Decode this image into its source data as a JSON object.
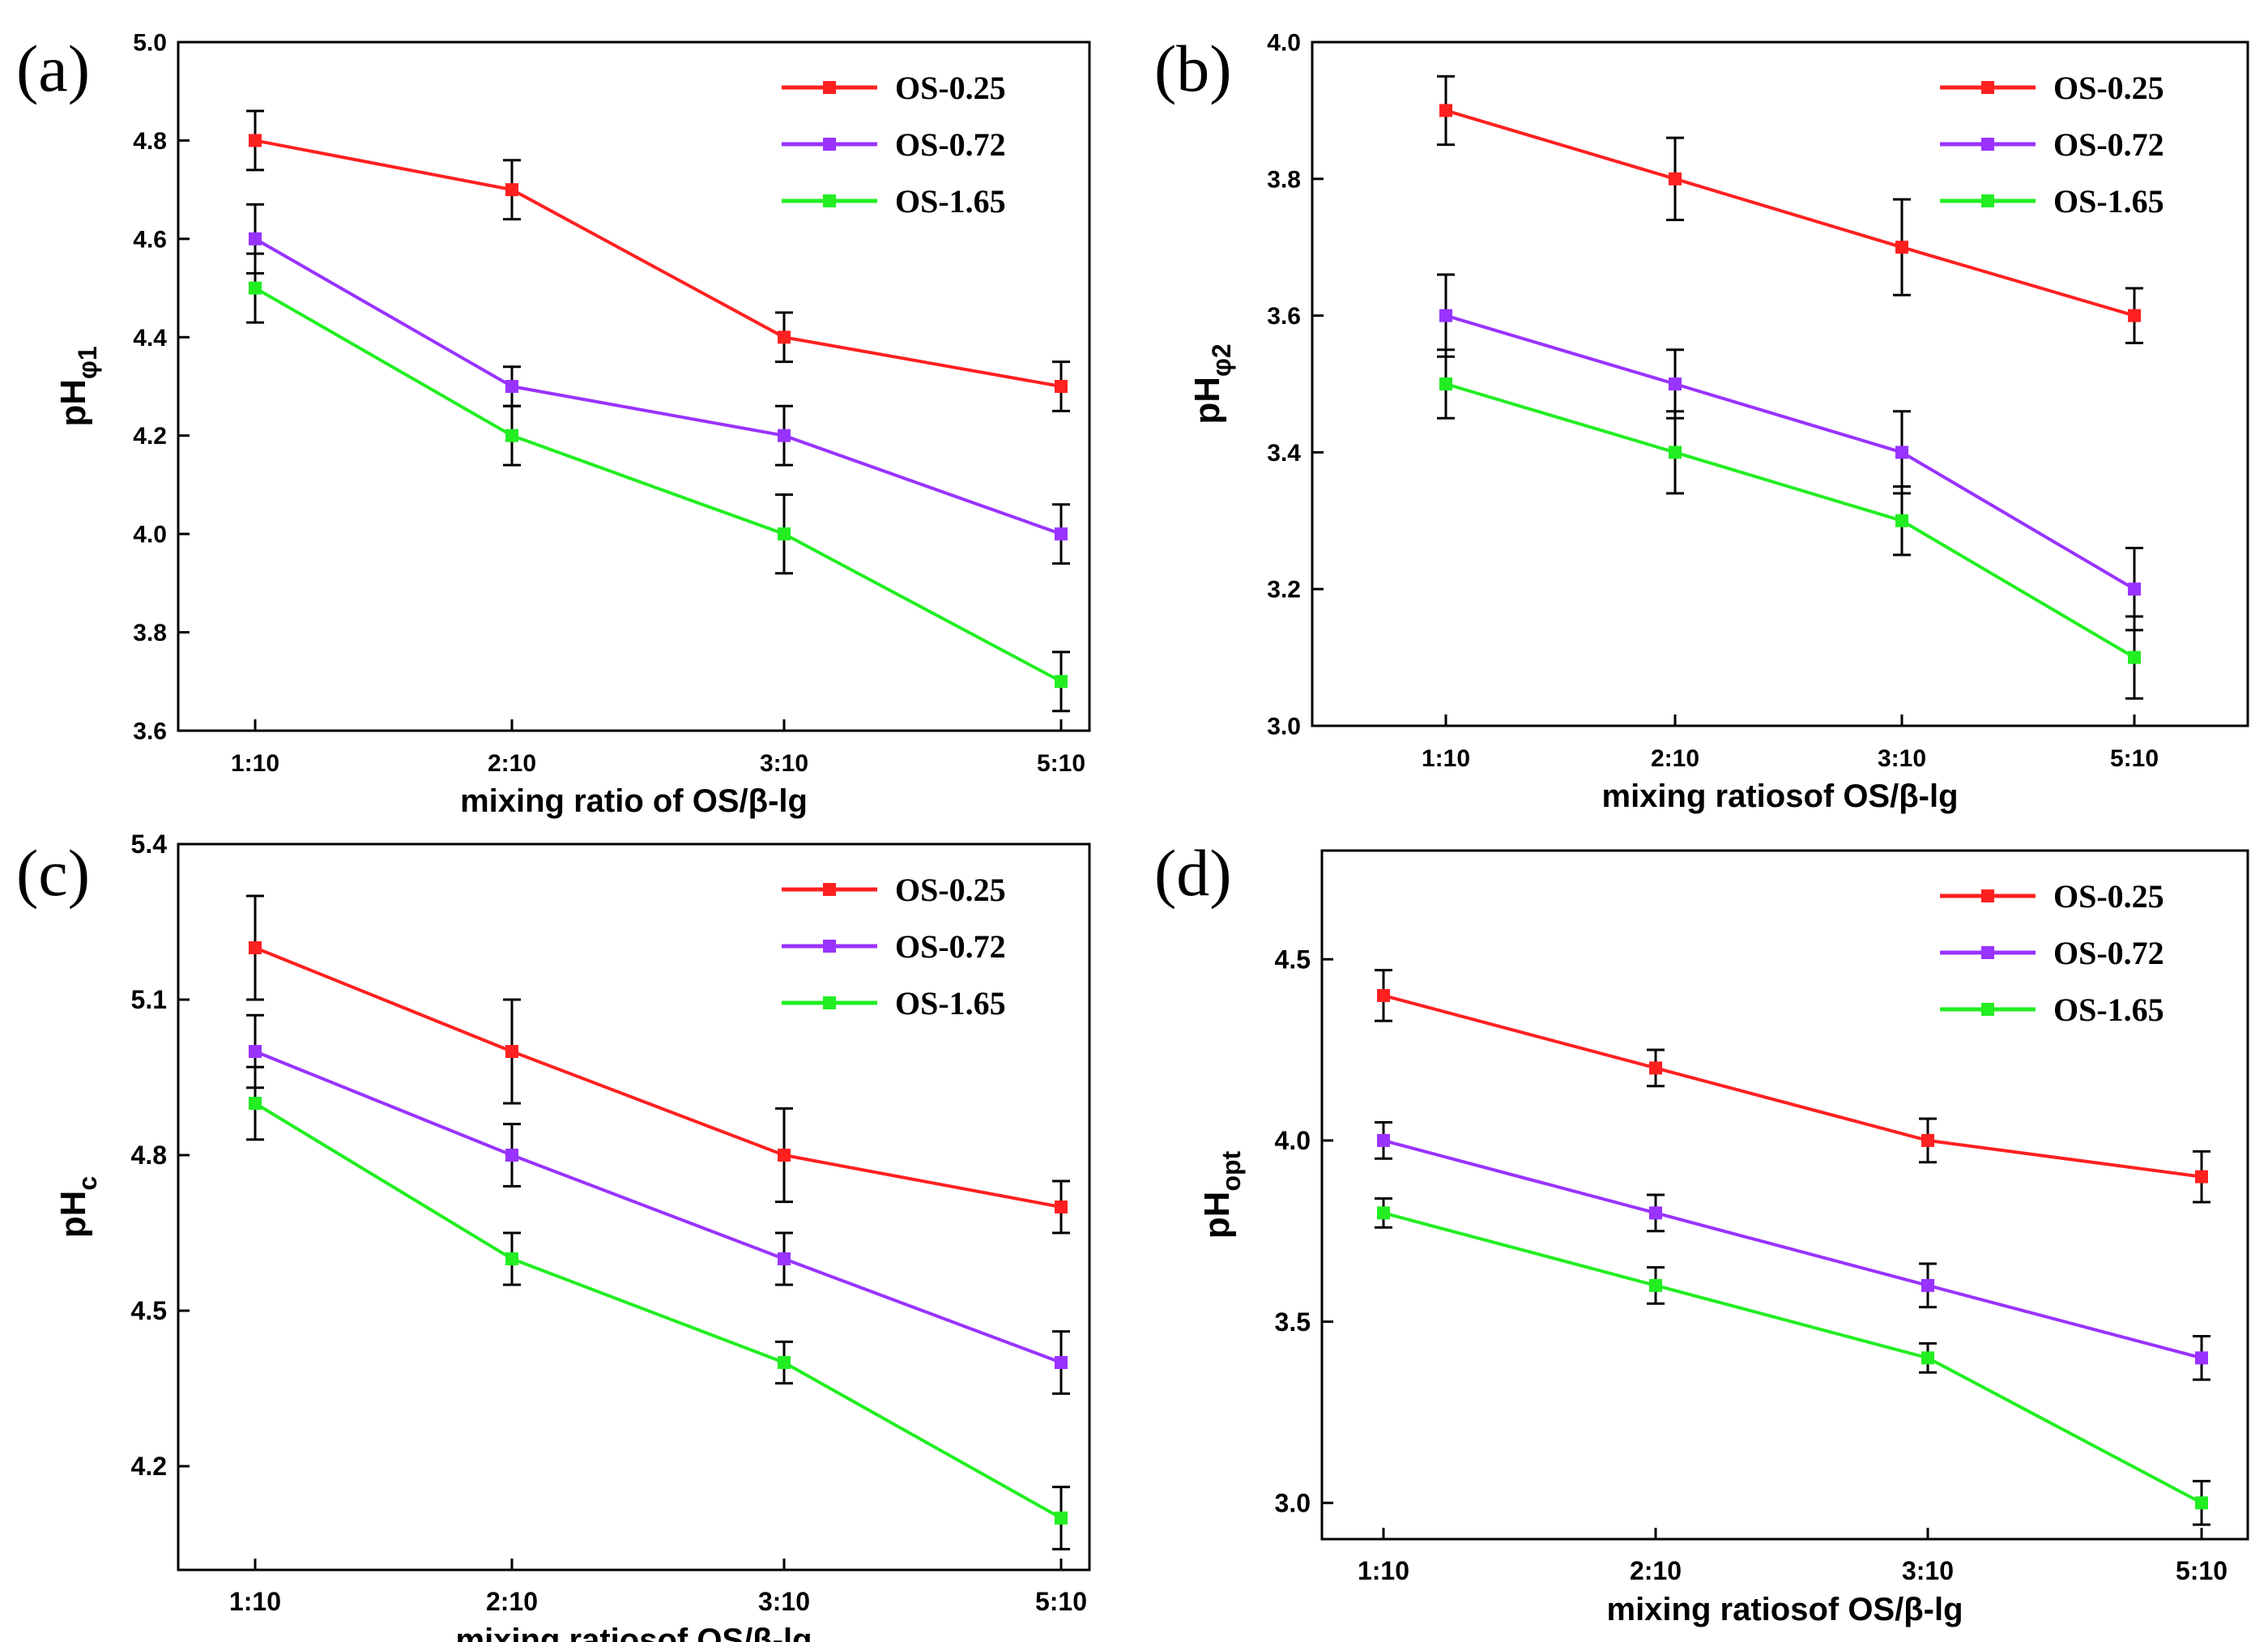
{
  "figure": {
    "colors": {
      "OS-0.25": "#ff2020",
      "OS-0.72": "#9933ff",
      "OS-1.65": "#22ee22",
      "error": "#000000"
    }
  },
  "chart_data": [
    {
      "type": "line",
      "panel": "(a)",
      "xlabel": "mixing ratio of OS/β-lg",
      "ylabel_main": "pH",
      "ylabel_sub": "φ1",
      "categories": [
        "1:10",
        "2:10",
        "3:10",
        "5:10"
      ],
      "ylim": [
        3.6,
        5.0
      ],
      "yticks": [
        3.6,
        3.8,
        4.0,
        4.2,
        4.4,
        4.6,
        4.8,
        5.0
      ],
      "ytick_labels": [
        "3.6",
        "3.8",
        "4.0",
        "4.2",
        "4.4",
        "4.6",
        "4.8",
        "5.0"
      ],
      "legend_position": "top-right",
      "series": [
        {
          "name": "OS-0.25",
          "values": [
            4.8,
            4.7,
            4.4,
            4.3
          ],
          "errors": [
            0.06,
            0.06,
            0.05,
            0.05
          ]
        },
        {
          "name": "OS-0.72",
          "values": [
            4.6,
            4.3,
            4.2,
            4.0
          ],
          "errors": [
            0.07,
            0.04,
            0.06,
            0.06
          ]
        },
        {
          "name": "OS-1.65",
          "values": [
            4.5,
            4.2,
            4.0,
            3.7
          ],
          "errors": [
            0.07,
            0.06,
            0.08,
            0.06
          ]
        }
      ]
    },
    {
      "type": "line",
      "panel": "(b)",
      "xlabel": "mixing ratiosof OS/β-lg",
      "ylabel_main": "pH",
      "ylabel_sub": "φ2",
      "categories": [
        "1:10",
        "2:10",
        "3:10",
        "5:10"
      ],
      "ylim": [
        3.0,
        4.0
      ],
      "yticks": [
        3.0,
        3.2,
        3.4,
        3.6,
        3.8,
        4.0
      ],
      "ytick_labels": [
        "3.0",
        "3.2",
        "3.4",
        "3.6",
        "3.8",
        "4.0"
      ],
      "legend_position": "top-right",
      "series": [
        {
          "name": "OS-0.25",
          "values": [
            3.9,
            3.8,
            3.7,
            3.6
          ],
          "errors": [
            0.05,
            0.06,
            0.07,
            0.04
          ]
        },
        {
          "name": "OS-0.72",
          "values": [
            3.6,
            3.5,
            3.4,
            3.2
          ],
          "errors": [
            0.06,
            0.05,
            0.06,
            0.06
          ]
        },
        {
          "name": "OS-1.65",
          "values": [
            3.5,
            3.4,
            3.3,
            3.1
          ],
          "errors": [
            0.05,
            0.06,
            0.05,
            0.06
          ]
        }
      ]
    },
    {
      "type": "line",
      "panel": "(c)",
      "xlabel": "mixing ratiosof OS/β-lg",
      "ylabel_main": "pH",
      "ylabel_sub": "c",
      "categories": [
        "1:10",
        "2:10",
        "3:10",
        "5:10"
      ],
      "ylim": [
        4.0,
        5.4
      ],
      "yticks": [
        4.2,
        4.5,
        4.8,
        5.1,
        5.4
      ],
      "ytick_labels": [
        "4.2",
        "4.5",
        "4.8",
        "5.1",
        "5.4"
      ],
      "legend_position": "top-right",
      "series": [
        {
          "name": "OS-0.25",
          "values": [
            5.2,
            5.0,
            4.8,
            4.7
          ],
          "errors": [
            0.1,
            0.1,
            0.09,
            0.05
          ]
        },
        {
          "name": "OS-0.72",
          "values": [
            5.0,
            4.8,
            4.6,
            4.4
          ],
          "errors": [
            0.07,
            0.06,
            0.05,
            0.06
          ]
        },
        {
          "name": "OS-1.65",
          "values": [
            4.9,
            4.6,
            4.4,
            4.1
          ],
          "errors": [
            0.07,
            0.05,
            0.04,
            0.06
          ]
        }
      ]
    },
    {
      "type": "line",
      "panel": "(d)",
      "xlabel": "mixing ratiosof OS/β-lg",
      "ylabel_main": "pH",
      "ylabel_sub": "opt",
      "categories": [
        "1:10",
        "2:10",
        "3:10",
        "5:10"
      ],
      "ylim": [
        2.9,
        4.8
      ],
      "yticks": [
        3.0,
        3.5,
        4.0,
        4.5
      ],
      "ytick_labels": [
        "3.0",
        "3.5",
        "4.0",
        "4.5"
      ],
      "legend_position": "top-right",
      "series": [
        {
          "name": "OS-0.25",
          "values": [
            4.4,
            4.2,
            4.0,
            3.9
          ],
          "errors": [
            0.07,
            0.05,
            0.06,
            0.07
          ]
        },
        {
          "name": "OS-0.72",
          "values": [
            4.0,
            3.8,
            3.6,
            3.4
          ],
          "errors": [
            0.05,
            0.05,
            0.06,
            0.06
          ]
        },
        {
          "name": "OS-1.65",
          "values": [
            3.8,
            3.6,
            3.4,
            3.0
          ],
          "errors": [
            0.04,
            0.05,
            0.04,
            0.06
          ]
        }
      ]
    }
  ]
}
